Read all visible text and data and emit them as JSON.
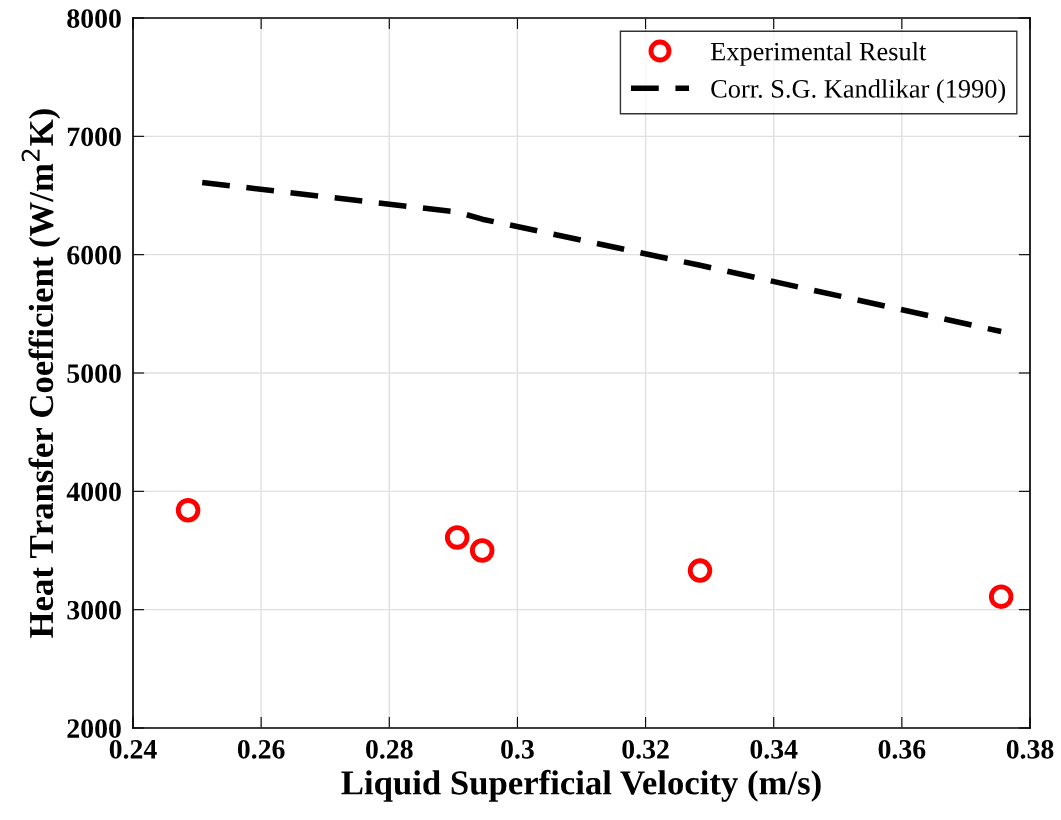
{
  "chart_data": {
    "type": "scatter",
    "xlabel": "Liquid Superficial Velocity (m/s)",
    "ylabel": "Heat Transfer Coefficient (W/m$^{2}$K)",
    "xlim": [
      0.24,
      0.38
    ],
    "xticks": [
      0.24,
      0.26,
      0.28,
      0.3,
      0.32,
      0.34,
      0.36,
      0.38
    ],
    "ylim": [
      2000,
      8000
    ],
    "yticks": [
      2000,
      3000,
      4000,
      5000,
      6000,
      7000,
      8000
    ],
    "grid": true,
    "legend": "top right",
    "series": [
      {
        "name": "Experimental Result",
        "color": "#ff0000",
        "marker": "circle",
        "x": [
          0.2486,
          0.2906,
          0.2945,
          0.3285,
          0.3755
        ],
        "values": [
          3840,
          3610,
          3500,
          3330,
          3110
        ]
      },
      {
        "name": "Corr. S.G. Kandlikar (1990)",
        "type": "line",
        "color": "#000000",
        "line_style": "dashed",
        "marker": "none",
        "x": [
          0.2508,
          0.2906,
          0.2945,
          0.3285,
          0.3755
        ],
        "values": [
          6610,
          6360,
          6300,
          5910,
          5350
        ]
      }
    ]
  }
}
